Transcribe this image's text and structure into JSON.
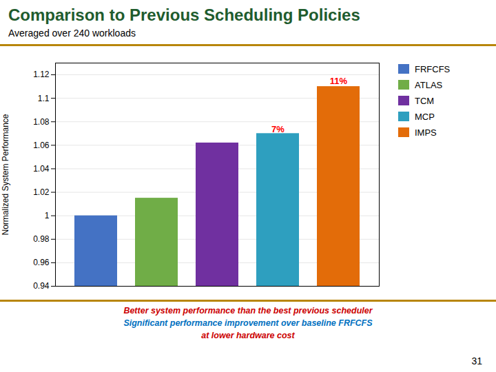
{
  "chart_data": {
    "type": "bar",
    "title": "Comparison to Previous Scheduling Policies",
    "subtitle": "Averaged over 240 workloads",
    "categories": [
      "FRFCFS",
      "ATLAS",
      "TCM",
      "MCP",
      "IMPS"
    ],
    "values": [
      1.0,
      1.015,
      1.062,
      1.07,
      1.11
    ],
    "colors": [
      "#4472C4",
      "#70AD47",
      "#7030A0",
      "#2E9FBF",
      "#E36C09"
    ],
    "ylabel": "Normalized System Performance",
    "ylim": [
      0.94,
      1.13
    ],
    "yticks": [
      0.94,
      0.96,
      0.98,
      1,
      1.02,
      1.04,
      1.06,
      1.08,
      1.1,
      1.12
    ],
    "grid": true,
    "legend": "right",
    "tick_labels": "y",
    "annotations": [
      {
        "text": "7%",
        "x": "MCP",
        "y": 1.071,
        "color": "red"
      },
      {
        "text": "11%",
        "x": "IMPS",
        "y": 1.112,
        "color": "red"
      }
    ],
    "footnotes": [
      {
        "text": "Better system performance than the best previous scheduler",
        "color": "#CC0000"
      },
      {
        "text": "Significant performance improvement over baseline FRFCFS",
        "color": "#0070C0"
      },
      {
        "text": "at lower hardware cost",
        "color": "#CC0000"
      }
    ],
    "slide_number": "31"
  }
}
